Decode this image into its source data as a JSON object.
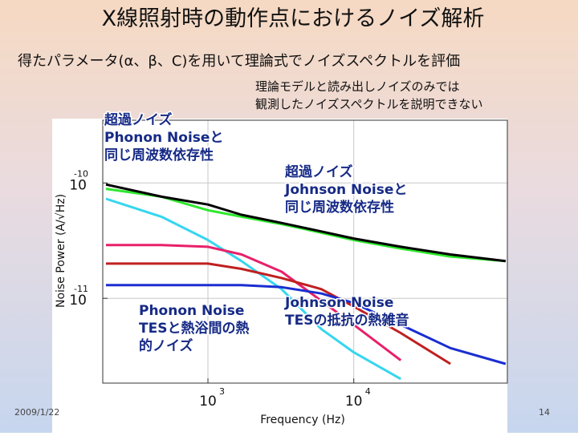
{
  "slide": {
    "title": "X線照射時の動作点におけるノイズ解析",
    "subtitle": "得たパラメータ(α、β、C)を用いて理論式でノイズスペクトルを評価",
    "note": [
      "理論モデルと読み出しノイズのみでは",
      "観測したノイズスペクトルを説明できない"
    ],
    "date": "2009/1/22",
    "page": "14"
  },
  "chart_data": {
    "type": "line",
    "xlabel": "Frequency (Hz)",
    "ylabel": "Noise Power (A/√Hz)",
    "xlog": true,
    "ylog": true,
    "grid": true,
    "x": [
      200,
      480,
      1000,
      1700,
      3200,
      6000,
      10000,
      21000,
      46000,
      110000
    ],
    "series": [
      {
        "color": "#2ee82e",
        "values": [
          8.9e-11,
          7.6e-11,
          5.8e-11,
          5.1e-11,
          4.4e-11,
          3.7e-11,
          3.2e-11,
          2.7e-11,
          2.3e-11,
          2.1e-11
        ]
      },
      {
        "color": "#000000",
        "values": [
          9.7e-11,
          7.6e-11,
          6.5e-11,
          5.3e-11,
          4.5e-11,
          3.8e-11,
          3.3e-11,
          2.8e-11,
          2.4e-11,
          2.1e-11
        ]
      },
      {
        "color": "#36d6ee",
        "values": [
          7.3e-11,
          5.1e-11,
          3.2e-11,
          2.1e-11,
          1.2e-11,
          5.4e-12,
          3.4e-12,
          2e-12,
          null,
          null
        ]
      },
      {
        "color": "#e8206a",
        "values": [
          2.9e-11,
          2.9e-11,
          2.8e-11,
          2.4e-11,
          1.7e-11,
          9.5e-12,
          5.9e-12,
          2.9e-12,
          null,
          null
        ]
      },
      {
        "color": "#c02020",
        "values": [
          2e-11,
          2e-11,
          2e-11,
          1.8e-11,
          1.5e-11,
          1.2e-11,
          8.5e-12,
          5e-12,
          2.7e-12,
          null
        ]
      },
      {
        "color": "#1a2ed0",
        "values": [
          1.3e-11,
          1.3e-11,
          1.3e-11,
          1.3e-11,
          1.25e-11,
          1.1e-11,
          9.1e-12,
          5.9e-12,
          3.7e-12,
          2.7e-12
        ]
      }
    ],
    "xlim": [
      190,
      113000
    ],
    "ylim": [
      1.84e-12,
      3.5e-10
    ],
    "xticks": [
      {
        "value": 1000,
        "label": "10",
        "exponent": "3"
      },
      {
        "value": 10000,
        "label": "10",
        "exponent": "4"
      }
    ],
    "yticks": [
      {
        "value": 1e-10,
        "label": "10",
        "exponent": "-10"
      },
      {
        "value": 1e-11,
        "label": "10",
        "exponent": "-11"
      }
    ],
    "annotations": [
      [
        "超過ノイズ",
        "Phonon Noiseと",
        "同じ周波数依存性"
      ],
      [
        "超過ノイズ",
        "Johnson Noiseと",
        "同じ周波数依存性"
      ],
      [
        "Phonon Noise",
        "TESと熱浴間の熱",
        "的ノイズ"
      ],
      [
        "Johnson Noise",
        "TESの抵抗の熱雑音"
      ]
    ]
  }
}
